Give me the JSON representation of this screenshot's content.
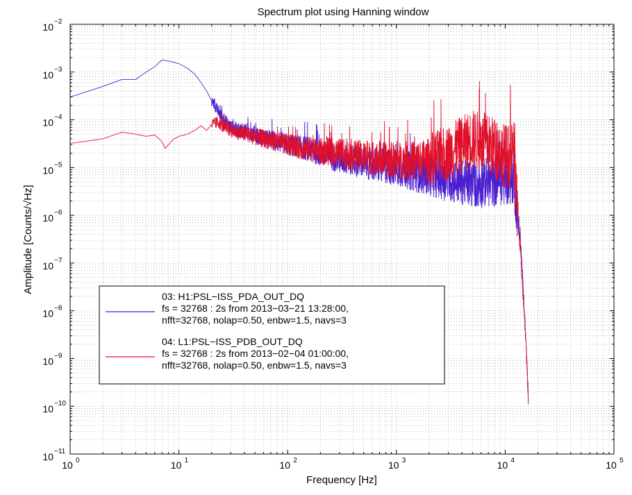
{
  "chart_data": {
    "type": "line",
    "title": "Spectrum plot using Hanning window",
    "xlabel": "Frequency [Hz]",
    "ylabel": "Amplitude [Counts/√Hz]",
    "xscale": "log",
    "yscale": "log",
    "xlim": [
      1,
      100000
    ],
    "ylim": [
      1e-11,
      0.01
    ],
    "x_ticks": [
      {
        "base": "10",
        "exp": "0"
      },
      {
        "base": "10",
        "exp": "1"
      },
      {
        "base": "10",
        "exp": "2"
      },
      {
        "base": "10",
        "exp": "3"
      },
      {
        "base": "10",
        "exp": "4"
      },
      {
        "base": "10",
        "exp": "5"
      }
    ],
    "y_ticks": [
      {
        "base": "10",
        "exp": "−11"
      },
      {
        "base": "10",
        "exp": "−10"
      },
      {
        "base": "10",
        "exp": "−9"
      },
      {
        "base": "10",
        "exp": "−8"
      },
      {
        "base": "10",
        "exp": "−7"
      },
      {
        "base": "10",
        "exp": "−6"
      },
      {
        "base": "10",
        "exp": "−5"
      },
      {
        "base": "10",
        "exp": "−4"
      },
      {
        "base": "10",
        "exp": "−3"
      },
      {
        "base": "10",
        "exp": "−2"
      }
    ],
    "grid": true,
    "legend_position": "lower-left",
    "series": [
      {
        "name": "03: H1:PSL−ISS_PDA_OUT_DQ",
        "legend_lines": [
          "03: H1:PSL−ISS_PDA_OUT_DQ",
          "fs = 32768 : 2s from 2013−03−21 13:28:00,",
          "nfft=32768, nolap=0.50, enbw=1.5, navs=3"
        ],
        "color": "#4b1fd0",
        "x": [
          1,
          2,
          3,
          4,
          5,
          6,
          7,
          8,
          9,
          10,
          12,
          14,
          16,
          18,
          20,
          23,
          26,
          30,
          35,
          40,
          50,
          60,
          80,
          100,
          150,
          200,
          300,
          500,
          700,
          1000,
          1500,
          2000,
          3000,
          4000,
          5000,
          6000,
          7000,
          8000,
          9000,
          10000,
          11000,
          12000,
          13000,
          14000,
          15000,
          16000,
          16384
        ],
        "y": [
          0.0003,
          0.0005,
          0.0007,
          0.0007,
          0.001,
          0.0013,
          0.0018,
          0.0017,
          0.0016,
          0.0015,
          0.0012,
          0.0009,
          0.0006,
          0.0004,
          0.00025,
          0.00015,
          0.0001,
          7e-05,
          6e-05,
          6e-05,
          5e-05,
          4e-05,
          3.5e-05,
          3e-05,
          2.5e-05,
          2e-05,
          1.5e-05,
          1.3e-05,
          1.1e-05,
          1e-05,
          8e-06,
          7e-06,
          5.5e-06,
          5e-06,
          4.5e-06,
          4.5e-06,
          5e-06,
          5e-06,
          5.5e-06,
          5.5e-06,
          6e-06,
          6e-06,
          1e-06,
          2e-07,
          1e-08,
          5e-10,
          1e-10
        ]
      },
      {
        "name": "04: L1:PSL−ISS_PDB_OUT_DQ",
        "legend_lines": [
          "04: L1:PSL−ISS_PDB_OUT_DQ",
          "fs = 32768 : 2s from 2013−02−04 01:00:00,",
          "nfft=32768, nolap=0.50, enbw=1.5, navs=3"
        ],
        "color": "#e0102a",
        "x": [
          1,
          2,
          3,
          4,
          5,
          6,
          7,
          7.5,
          8,
          9,
          10,
          12,
          14,
          16,
          18,
          20,
          23,
          26,
          30,
          35,
          40,
          50,
          60,
          80,
          100,
          150,
          200,
          300,
          500,
          700,
          1000,
          1500,
          2000,
          3000,
          4000,
          5000,
          6000,
          7000,
          8000,
          9000,
          10000,
          11000,
          12000,
          13000,
          14000,
          15000,
          16000,
          16384
        ],
        "y": [
          3.2e-05,
          4e-05,
          5.5e-05,
          5e-05,
          4.5e-05,
          4.8e-05,
          3.5e-05,
          2.5e-05,
          3e-05,
          4e-05,
          4.5e-05,
          5e-05,
          6e-05,
          7.5e-05,
          6e-05,
          8e-05,
          9e-05,
          7e-05,
          6e-05,
          5.5e-05,
          5e-05,
          4.5e-05,
          4e-05,
          3.5e-05,
          3e-05,
          2.5e-05,
          2.2e-05,
          2e-05,
          1.7e-05,
          1.5e-05,
          1.4e-05,
          1.4e-05,
          1.5e-05,
          2e-05,
          3e-05,
          4e-05,
          3.5e-05,
          3e-05,
          2.5e-05,
          2e-05,
          1.8e-05,
          1.7e-05,
          2e-05,
          1e-06,
          1e-07,
          8e-09,
          5e-10,
          1e-10
        ]
      }
    ]
  }
}
